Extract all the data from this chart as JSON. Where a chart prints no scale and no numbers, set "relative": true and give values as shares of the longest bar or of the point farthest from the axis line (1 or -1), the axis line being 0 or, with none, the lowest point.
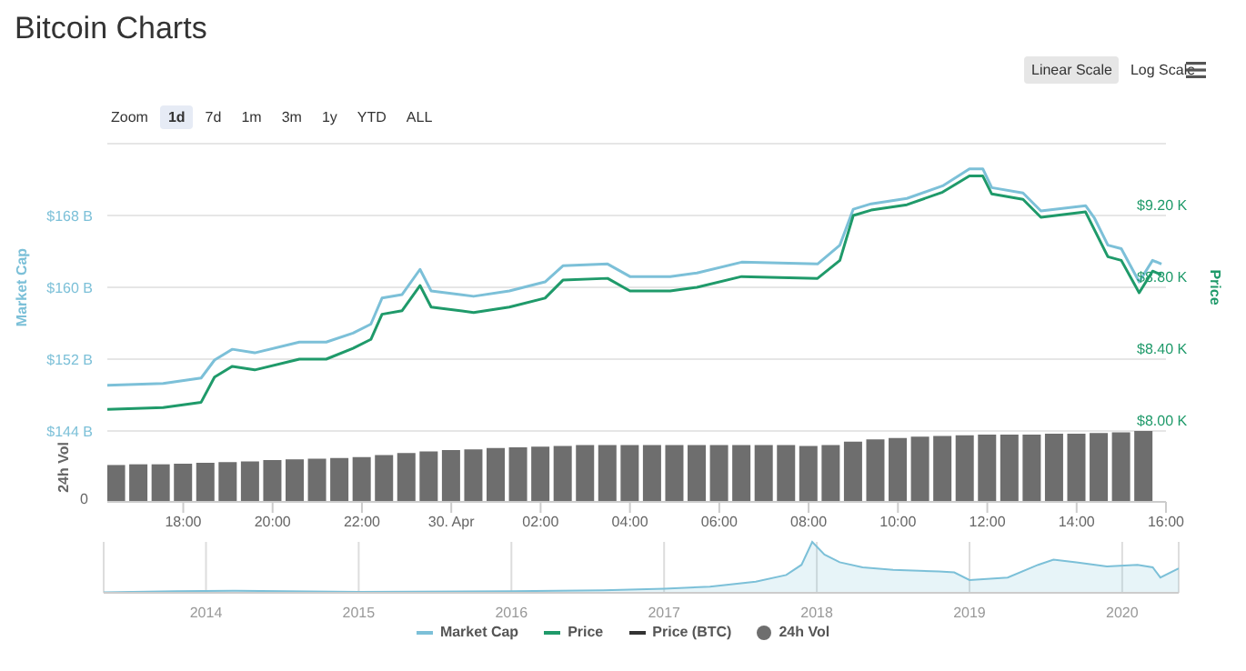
{
  "chart_data": [
    {
      "type": "line",
      "title": "Bitcoin Charts",
      "ylabel": "Market Cap",
      "y2label": "Price",
      "annotations": [
        "Zoom",
        "1d",
        "7d",
        "1m",
        "3m",
        "1y",
        "YTD",
        "ALL",
        "Linear Scale",
        "Log Scale"
      ],
      "x": [
        "2020-04-29T16:18",
        "2020-04-29T17:33",
        "2020-04-29T18:24",
        "2020-04-29T18:42",
        "2020-04-29T19:06",
        "2020-04-29T19:36",
        "2020-04-29T20:36",
        "2020-04-29T21:12",
        "2020-04-29T21:48",
        "2020-04-29T22:12",
        "2020-04-29T22:27",
        "2020-04-29T22:54",
        "2020-04-29T23:18",
        "2020-04-29T23:33",
        "2020-04-30T00:30",
        "2020-04-30T01:18",
        "2020-04-30T02:06",
        "2020-04-30T02:30",
        "2020-04-30T03:30",
        "2020-04-30T04:00",
        "2020-04-30T04:54",
        "2020-04-30T05:30",
        "2020-04-30T06:30",
        "2020-04-30T08:12",
        "2020-04-30T08:42",
        "2020-04-30T09:00",
        "2020-04-30T09:24",
        "2020-04-30T10:12",
        "2020-04-30T11:00",
        "2020-04-30T11:36",
        "2020-04-30T11:54",
        "2020-04-30T12:06",
        "2020-04-30T12:48",
        "2020-04-30T13:12",
        "2020-04-30T14:12",
        "2020-04-30T14:24",
        "2020-04-30T14:42",
        "2020-04-30T15:00",
        "2020-04-30T15:24",
        "2020-04-30T15:42",
        "2020-04-30T15:54"
      ],
      "series": [
        {
          "name": "Market Cap",
          "color": "#7cc0d8",
          "values": [
            149.1,
            149.3,
            149.9,
            151.9,
            153.1,
            152.7,
            153.9,
            153.9,
            154.9,
            155.9,
            158.8,
            159.2,
            162.0,
            159.6,
            159.0,
            159.6,
            160.6,
            162.4,
            162.6,
            161.2,
            161.2,
            161.6,
            162.8,
            162.6,
            164.7,
            168.7,
            169.3,
            169.9,
            171.3,
            173.2,
            173.2,
            171.1,
            170.5,
            168.5,
            169.1,
            167.7,
            164.7,
            164.3,
            160.6,
            163.0,
            162.6
          ]
        },
        {
          "name": "Price",
          "color": "#1f9a6a",
          "axis": "y2",
          "values": [
            8.12,
            8.13,
            8.16,
            8.3,
            8.36,
            8.34,
            8.4,
            8.4,
            8.46,
            8.51,
            8.65,
            8.67,
            8.81,
            8.69,
            8.66,
            8.69,
            8.74,
            8.84,
            8.85,
            8.78,
            8.78,
            8.8,
            8.86,
            8.85,
            8.95,
            9.2,
            9.23,
            9.26,
            9.33,
            9.42,
            9.42,
            9.32,
            9.29,
            9.19,
            9.22,
            9.12,
            8.97,
            8.95,
            8.77,
            8.89,
            8.87
          ]
        },
        {
          "name": "Price (BTC)",
          "color": "#333333",
          "values": [
            null,
            null,
            null,
            null,
            null,
            null,
            null,
            null,
            null,
            null,
            null,
            null,
            null,
            null,
            null,
            null,
            null,
            null,
            null,
            null,
            null,
            null,
            null,
            null,
            null,
            null,
            null,
            null,
            null,
            null,
            null,
            null,
            null,
            null,
            null,
            null,
            null,
            null,
            null,
            null,
            null
          ]
        }
      ],
      "xlim": [
        "2020-04-29T16:18",
        "2020-04-30T16:00"
      ],
      "ylim": [
        144,
        176
      ],
      "yticks": [
        {
          "value": 144,
          "label": "$144 B"
        },
        {
          "value": 152,
          "label": "$152 B"
        },
        {
          "value": 160,
          "label": "$160 B"
        },
        {
          "value": 168,
          "label": "$168 B"
        }
      ],
      "y2lim": [
        8.0,
        9.6
      ],
      "y2ticks": [
        {
          "value": 8.0,
          "label": "$8.00 K"
        },
        {
          "value": 8.4,
          "label": "$8.40 K"
        },
        {
          "value": 8.8,
          "label": "$8.80 K"
        },
        {
          "value": 9.2,
          "label": "$9.20 K"
        }
      ],
      "tick_labels": "y",
      "grid": "y",
      "legend": "bottom",
      "marker": "none",
      "line_style": "solid"
    },
    {
      "type": "bar",
      "ylabel": "24h Vol",
      "relative": true,
      "annotations": [
        "0"
      ],
      "x": [
        "2020-04-29T16:30",
        "2020-04-29T17:00",
        "2020-04-29T17:30",
        "2020-04-29T18:00",
        "2020-04-29T18:30",
        "2020-04-29T19:00",
        "2020-04-29T19:30",
        "2020-04-29T20:00",
        "2020-04-29T20:30",
        "2020-04-29T21:00",
        "2020-04-29T21:30",
        "2020-04-29T22:00",
        "2020-04-29T22:30",
        "2020-04-29T23:00",
        "2020-04-29T23:30",
        "2020-04-30T00:00",
        "2020-04-30T00:30",
        "2020-04-30T01:00",
        "2020-04-30T01:30",
        "2020-04-30T02:00",
        "2020-04-30T02:30",
        "2020-04-30T03:00",
        "2020-04-30T03:30",
        "2020-04-30T04:00",
        "2020-04-30T04:30",
        "2020-04-30T05:00",
        "2020-04-30T05:30",
        "2020-04-30T06:00",
        "2020-04-30T06:30",
        "2020-04-30T07:00",
        "2020-04-30T07:30",
        "2020-04-30T08:00",
        "2020-04-30T08:30",
        "2020-04-30T09:00",
        "2020-04-30T09:30",
        "2020-04-30T10:00",
        "2020-04-30T10:30",
        "2020-04-30T11:00",
        "2020-04-30T11:30",
        "2020-04-30T12:00",
        "2020-04-30T12:30",
        "2020-04-30T13:00",
        "2020-04-30T13:30",
        "2020-04-30T14:00",
        "2020-04-30T14:30",
        "2020-04-30T15:00",
        "2020-04-30T15:30"
      ],
      "series": [
        {
          "name": "24h Vol",
          "color": "#6e6e6e",
          "values": [
            0.52,
            0.53,
            0.53,
            0.54,
            0.55,
            0.56,
            0.57,
            0.59,
            0.6,
            0.61,
            0.62,
            0.63,
            0.66,
            0.69,
            0.71,
            0.73,
            0.74,
            0.76,
            0.77,
            0.78,
            0.79,
            0.8,
            0.8,
            0.8,
            0.8,
            0.8,
            0.8,
            0.8,
            0.8,
            0.8,
            0.8,
            0.79,
            0.8,
            0.85,
            0.88,
            0.9,
            0.92,
            0.93,
            0.94,
            0.95,
            0.95,
            0.95,
            0.96,
            0.96,
            0.97,
            0.98,
            1
          ]
        }
      ],
      "xlim": [
        "2020-04-29T16:18",
        "2020-04-30T16:00"
      ],
      "xticks": [
        {
          "value": "2020-04-29T18:00",
          "label": "18:00"
        },
        {
          "value": "2020-04-29T20:00",
          "label": "20:00"
        },
        {
          "value": "2020-04-29T22:00",
          "label": "22:00"
        },
        {
          "value": "2020-04-30T00:00",
          "label": "30. Apr"
        },
        {
          "value": "2020-04-30T02:00",
          "label": "02:00"
        },
        {
          "value": "2020-04-30T04:00",
          "label": "04:00"
        },
        {
          "value": "2020-04-30T06:00",
          "label": "06:00"
        },
        {
          "value": "2020-04-30T08:00",
          "label": "08:00"
        },
        {
          "value": "2020-04-30T10:00",
          "label": "10:00"
        },
        {
          "value": "2020-04-30T12:00",
          "label": "12:00"
        },
        {
          "value": "2020-04-30T14:00",
          "label": "14:00"
        },
        {
          "value": "2020-04-30T16:00",
          "label": "16:00"
        }
      ],
      "legend": "bottom"
    },
    {
      "type": "area",
      "relative": true,
      "x": [
        2013.33,
        2013.8,
        2014.2,
        2015.0,
        2016.0,
        2016.6,
        2017.0,
        2017.3,
        2017.6,
        2017.8,
        2017.9,
        2017.97,
        2018.05,
        2018.15,
        2018.3,
        2018.5,
        2018.8,
        2018.9,
        2019.0,
        2019.25,
        2019.45,
        2019.55,
        2019.7,
        2019.9,
        2020.1,
        2020.2,
        2020.25,
        2020.37
      ],
      "series": [
        {
          "color": "#7cc0d8",
          "values": [
            0.01,
            0.03,
            0.04,
            0.02,
            0.03,
            0.05,
            0.08,
            0.12,
            0.22,
            0.35,
            0.55,
            1,
            0.75,
            0.6,
            0.5,
            0.45,
            0.42,
            0.4,
            0.25,
            0.3,
            0.55,
            0.65,
            0.6,
            0.52,
            0.55,
            0.5,
            0.3,
            0.48
          ]
        }
      ],
      "xlim": [
        2013.33,
        2020.37
      ],
      "xticks": [
        2014,
        2015,
        2016,
        2017,
        2018,
        2019,
        2020
      ],
      "grid": "x"
    }
  ]
}
